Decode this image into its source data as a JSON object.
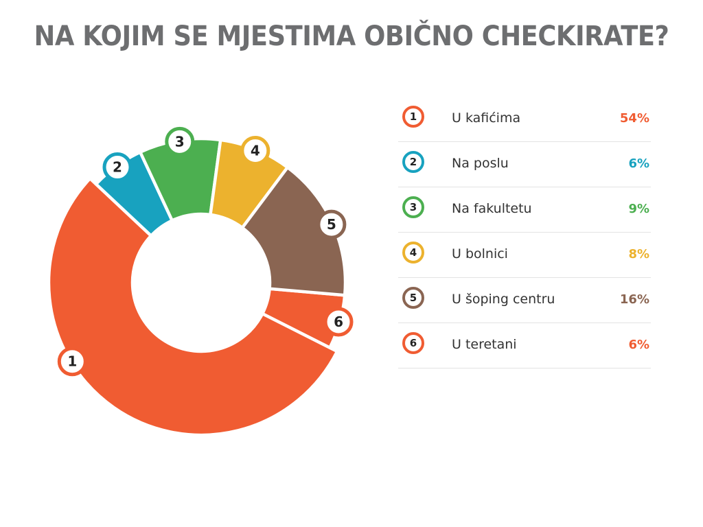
{
  "title": "NA KOJIM SE MJESTIMA OBIČNO CHECKIRATE?",
  "chart_data": {
    "type": "pie",
    "title": "NA KOJIM SE MJESTIMA OBIČNO CHECKIRATE?",
    "unit": "%",
    "slices": [
      {
        "id": "1",
        "label": "U kafićima",
        "value": 54,
        "display": "54%",
        "color": "#f05c32"
      },
      {
        "id": "2",
        "label": "Na poslu",
        "value": 6,
        "display": "6%",
        "color": "#18a2bf"
      },
      {
        "id": "3",
        "label": "Na fakultetu",
        "value": 9,
        "display": "9%",
        "color": "#4caf50"
      },
      {
        "id": "4",
        "label": "U bolnici",
        "value": 8,
        "display": "8%",
        "color": "#ecb22e"
      },
      {
        "id": "5",
        "label": "U šoping centru",
        "value": 16,
        "display": "16%",
        "color": "#8a6552"
      },
      {
        "id": "6",
        "label": "U teretani",
        "value": 6,
        "display": "6%",
        "color": "#f05c32"
      }
    ],
    "legend_placement": "right"
  }
}
